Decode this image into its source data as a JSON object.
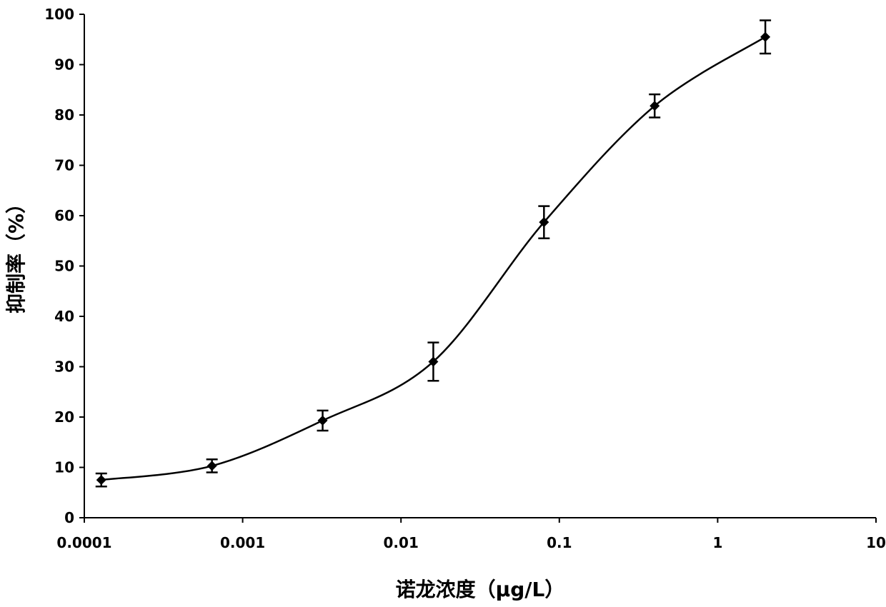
{
  "chart_data": {
    "type": "scatter",
    "title": "",
    "xlabel": "诺龙浓度（μg/L）",
    "ylabel": "抑制率（%）",
    "x_scale": "log",
    "xlim": [
      0.0001,
      10
    ],
    "ylim": [
      0,
      100
    ],
    "x_ticks": [
      0.0001,
      0.001,
      0.01,
      0.1,
      1,
      10
    ],
    "x_tick_labels": [
      "0.0001",
      "0.001",
      "0.01",
      "0.1",
      "1",
      "10"
    ],
    "y_ticks": [
      0,
      10,
      20,
      30,
      40,
      50,
      60,
      70,
      80,
      90,
      100
    ],
    "y_tick_labels": [
      "0",
      "10",
      "20",
      "30",
      "40",
      "50",
      "60",
      "70",
      "80",
      "90",
      "100"
    ],
    "grid": false,
    "fitted_curve": true,
    "points": [
      {
        "x": 0.000128,
        "y": 7.5,
        "err": 1.3
      },
      {
        "x": 0.00064,
        "y": 10.3,
        "err": 1.3
      },
      {
        "x": 0.0032,
        "y": 19.3,
        "err": 2.0
      },
      {
        "x": 0.016,
        "y": 31.0,
        "err": 3.8
      },
      {
        "x": 0.08,
        "y": 58.7,
        "err": 3.2
      },
      {
        "x": 0.4,
        "y": 81.8,
        "err": 2.3
      },
      {
        "x": 2.0,
        "y": 95.5,
        "err": 3.3
      }
    ],
    "color": "#000000"
  }
}
